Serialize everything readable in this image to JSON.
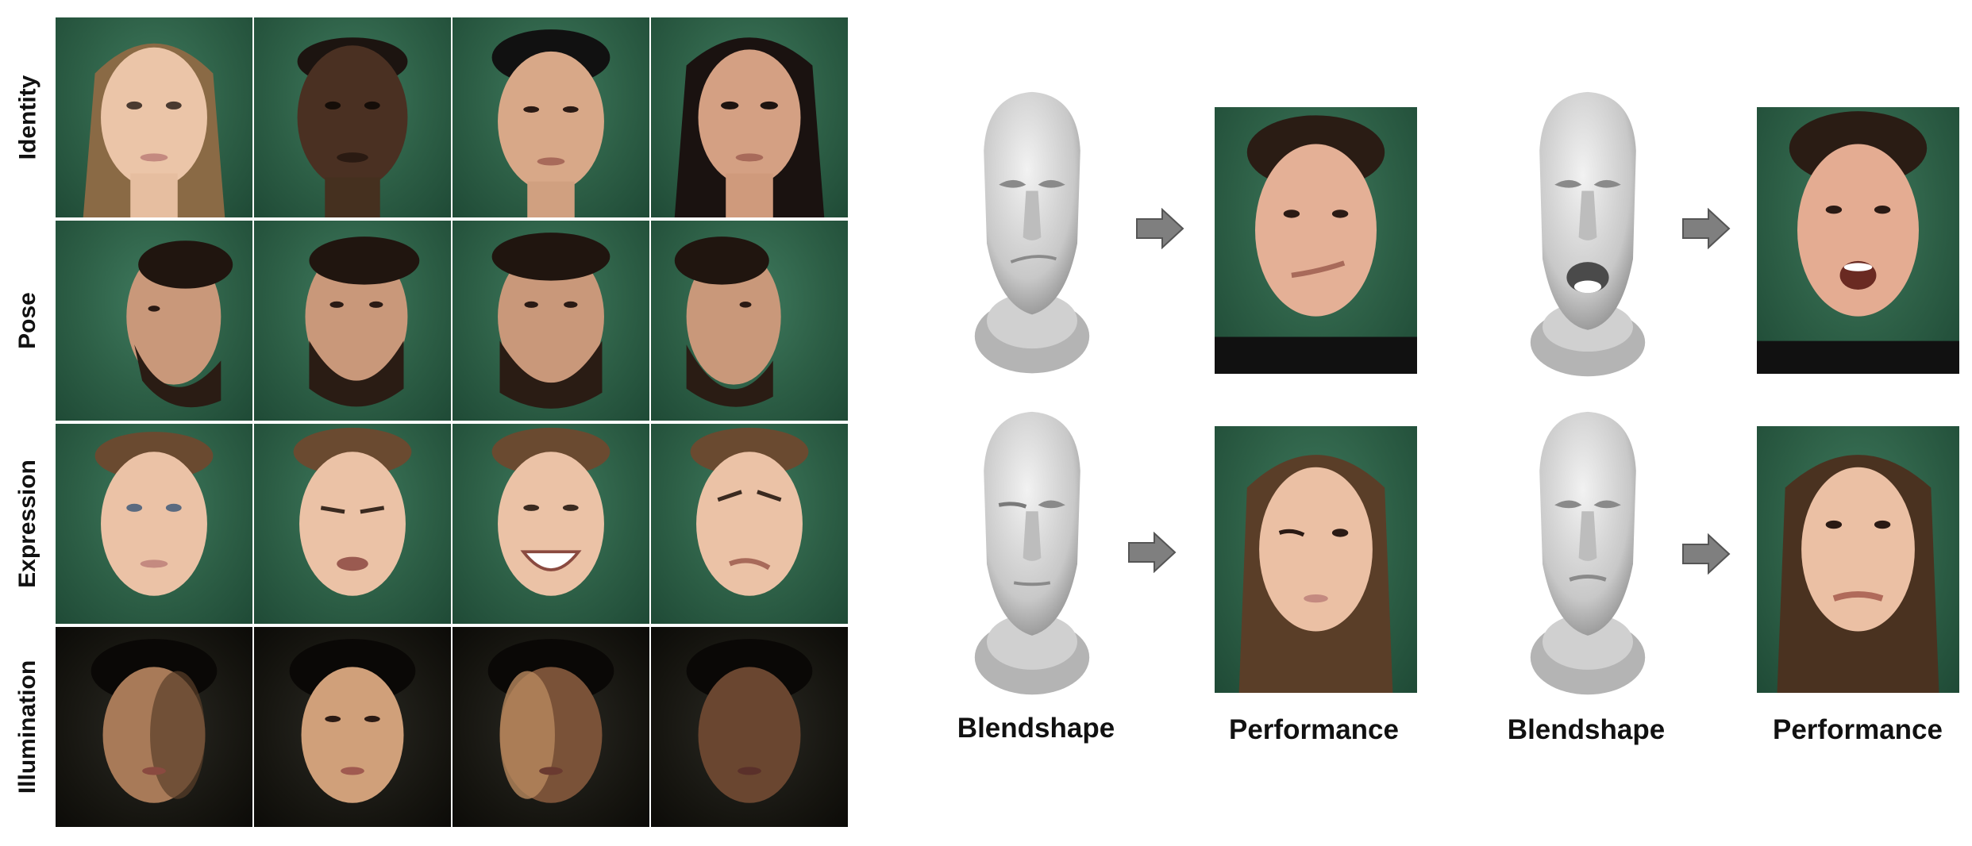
{
  "left_grid": {
    "rows": [
      {
        "label": "Identity"
      },
      {
        "label": "Pose"
      },
      {
        "label": "Expression"
      },
      {
        "label": "Illumination"
      }
    ]
  },
  "right_panel": {
    "captions": {
      "col1": "Blendshape",
      "col2": "Performance",
      "col3": "Blendshape",
      "col4": "Performance"
    }
  },
  "colors": {
    "backdrop_green": "#2d5f46",
    "arrow_gray": "#7f7f7f",
    "mesh_gray": "#c8c8c8"
  }
}
